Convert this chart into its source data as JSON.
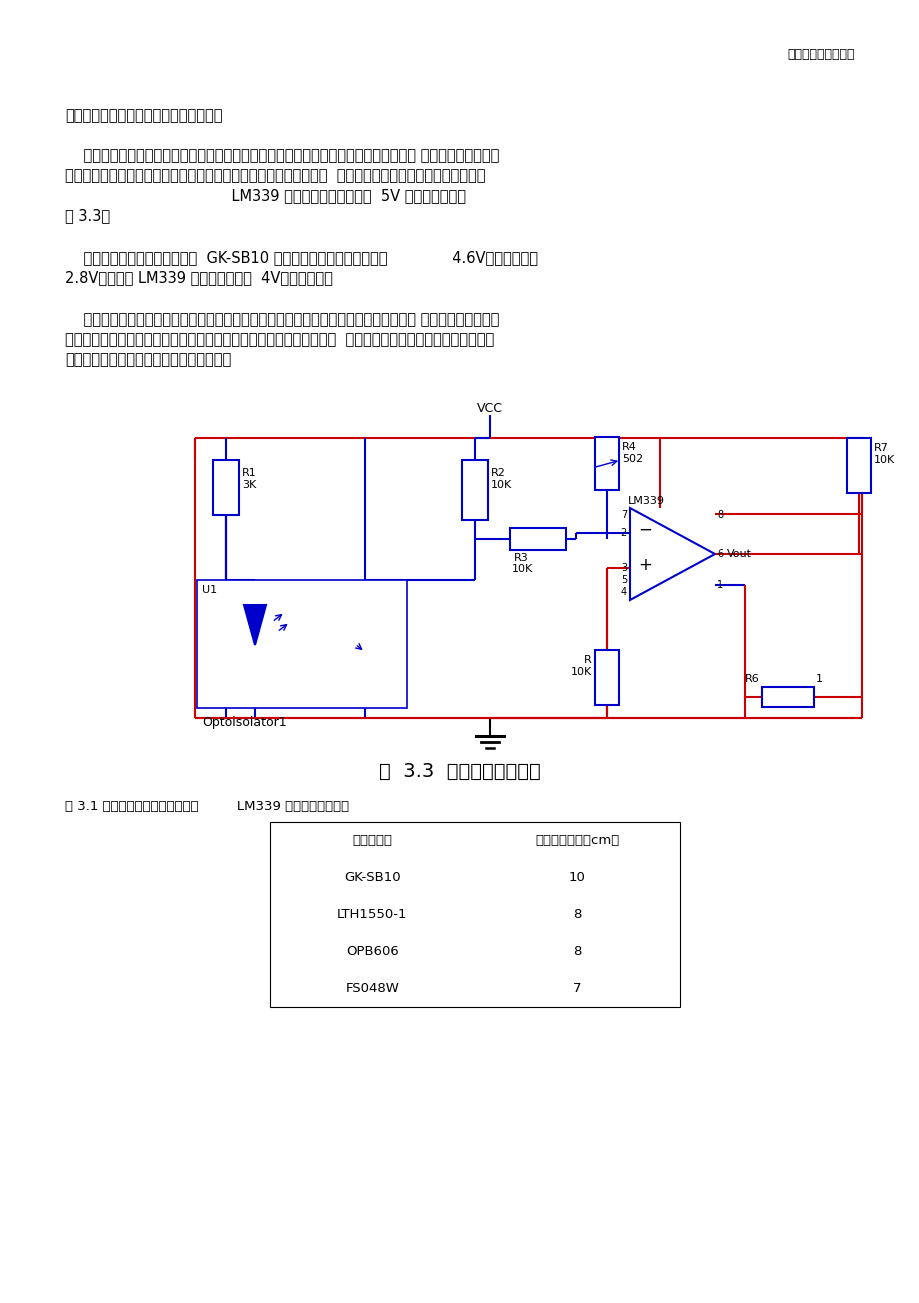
{
  "header_text": "第三章硬件电路设计",
  "para1": "无需放大可直接接电阻得到合适的电压。",
  "para2_lines": [
    "    当传感器遇到黑线时，发光二极管发射出来的光被吸收，光敏三极管光电流较低。当传 感器遇到白线时，光",
    "反射进入光敏三极管，使三极管光电流增大。由电流的变化，引起接  收端串联的电阻两端电压变化，再通过",
    "                                    LM339 比较器比较，直接输出  5V 的高低电平，如",
    "图 3.3。"
  ],
  "para3_lines": [
    "    在实际调试中，我们测出来的  GK-SB10 的接收端电压在黑线情况下为              4.6V，白线情况为",
    "2.8V，我们将 LM339 的比较电压调为  4V，工作正常。"
  ],
  "para4_lines": [
    "    在制作过程中，我们希望光电管的有效距离越远越好，这样小车的前瞻性要好，使得车 子有更好的预判能力",
    "，所以我们想出通过镜子反射的原理，让传感器感知镜子里面的东西，  而镜子可以通过改变角度，看到不同距",
    "离的路面。但是，通过试验，此法不成立。"
  ],
  "fig_caption": "图  3.3  光电传感器电路图",
  "table_caption": "表 3.1 传感器测试（表中测试均接         LM339 比较输出后测试）",
  "table_headers": [
    "传感器类型",
    "最大测量距离（cm）"
  ],
  "table_data": [
    [
      "GK-SB10",
      "10"
    ],
    [
      "LTH1550-1",
      "8"
    ],
    [
      "OPB606",
      "8"
    ],
    [
      "FS048W",
      "7"
    ]
  ],
  "bg_color": "#ffffff",
  "text_color": "#000000",
  "red": "#cc0000",
  "blue": "#0000cc",
  "black": "#000000"
}
